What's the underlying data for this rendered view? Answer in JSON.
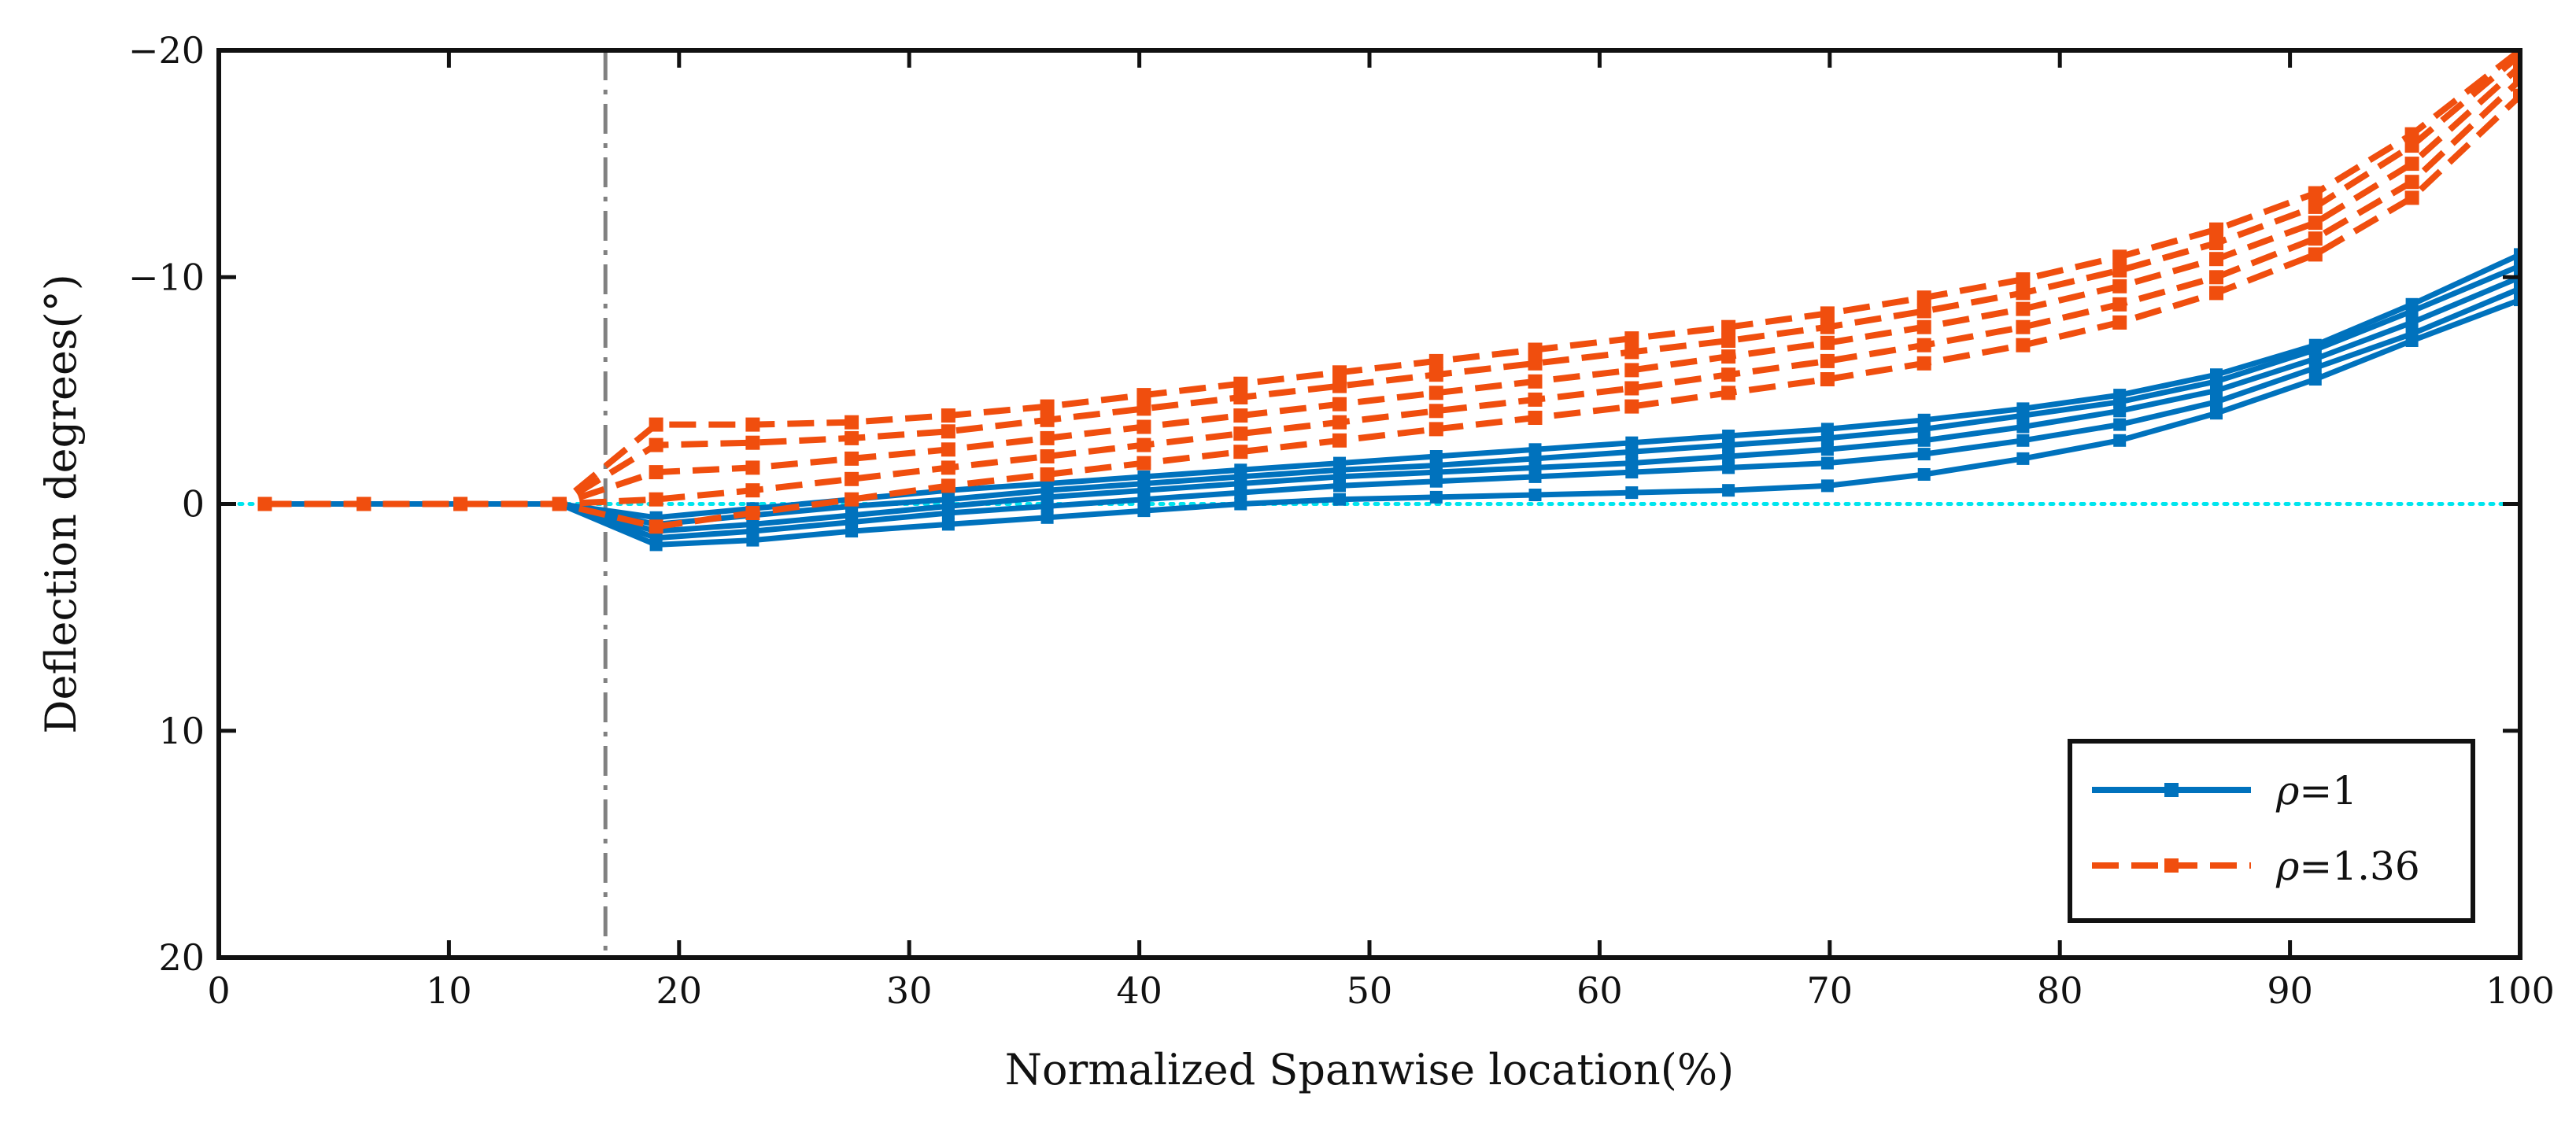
{
  "chart_data": {
    "type": "line",
    "title": "",
    "xlabel": "Normalized Spanwise location(%)",
    "ylabel": "Deflection degrees(°)",
    "xlim": [
      0,
      100
    ],
    "ylim": [
      20,
      -20
    ],
    "y_axis_reversed": true,
    "x_ticks": [
      0,
      10,
      20,
      30,
      40,
      50,
      60,
      70,
      80,
      90,
      100
    ],
    "x_tick_labels": [
      "0",
      "10",
      "20",
      "30",
      "40",
      "50",
      "60",
      "70",
      "80",
      "90",
      "100"
    ],
    "y_ticks": [
      -20,
      -10,
      0,
      10,
      20
    ],
    "y_tick_labels": [
      "−20",
      "−10",
      "0",
      "10",
      "20"
    ],
    "reference_lines": [
      {
        "name": "zero-line",
        "orientation": "horizontal",
        "value": 0,
        "color": "#00E5EE",
        "style": "dotted"
      },
      {
        "name": "root-boundary",
        "orientation": "vertical",
        "value": 16.8,
        "color": "#808080",
        "style": "dash-dot"
      }
    ],
    "legend": {
      "position": "bottom-right",
      "entries": [
        {
          "rho_symbol": "ρ",
          "text": "=1",
          "series": "rho-1"
        },
        {
          "rho_symbol": "ρ",
          "text": "=1.36",
          "series": "rho-1.36"
        }
      ]
    },
    "series_styles": {
      "rho-1": {
        "color": "#0072BD",
        "dash": "solid"
      },
      "rho-1.36": {
        "color": "#F04E0E",
        "dash": "dashed"
      }
    },
    "series": [
      {
        "name": "ρ=1 run 1",
        "group": "rho-1",
        "x": [
          2,
          6.3,
          10.5,
          14.8,
          19,
          23.2,
          27.5,
          31.7,
          36,
          40.2,
          44.4,
          48.7,
          52.9,
          57.2,
          61.4,
          65.6,
          69.9,
          74.1,
          78.4,
          82.6,
          86.8,
          91.1,
          95.3,
          100
        ],
        "y": [
          0,
          0,
          0,
          0,
          1.8,
          1.6,
          1.2,
          0.9,
          0.6,
          0.3,
          0,
          -0.2,
          -0.3,
          -0.4,
          -0.5,
          -0.6,
          -0.8,
          -1.3,
          -2.0,
          -2.8,
          -4.0,
          -5.5,
          -7.2,
          -9.0
        ]
      },
      {
        "name": "ρ=1 run 2",
        "group": "rho-1",
        "x": [
          2,
          6.3,
          10.5,
          14.8,
          19,
          23.2,
          27.5,
          31.7,
          36,
          40.2,
          44.4,
          48.7,
          52.9,
          57.2,
          61.4,
          65.6,
          69.9,
          74.1,
          78.4,
          82.6,
          86.8,
          91.1,
          95.3,
          100
        ],
        "y": [
          0,
          0,
          0,
          0,
          1.5,
          1.2,
          0.8,
          0.4,
          0.1,
          -0.2,
          -0.5,
          -0.8,
          -1.0,
          -1.2,
          -1.4,
          -1.6,
          -1.8,
          -2.2,
          -2.8,
          -3.5,
          -4.5,
          -6.0,
          -7.5,
          -9.5
        ]
      },
      {
        "name": "ρ=1 run 3",
        "group": "rho-1",
        "x": [
          2,
          6.3,
          10.5,
          14.8,
          19,
          23.2,
          27.5,
          31.7,
          36,
          40.2,
          44.4,
          48.7,
          52.9,
          57.2,
          61.4,
          65.6,
          69.9,
          74.1,
          78.4,
          82.6,
          86.8,
          91.1,
          95.3,
          100
        ],
        "y": [
          0,
          0,
          0,
          0,
          1.2,
          0.9,
          0.5,
          0.1,
          -0.3,
          -0.6,
          -0.9,
          -1.2,
          -1.4,
          -1.6,
          -1.8,
          -2.1,
          -2.4,
          -2.8,
          -3.4,
          -4.1,
          -5.0,
          -6.4,
          -8.0,
          -10.0
        ]
      },
      {
        "name": "ρ=1 run 4",
        "group": "rho-1",
        "x": [
          2,
          6.3,
          10.5,
          14.8,
          19,
          23.2,
          27.5,
          31.7,
          36,
          40.2,
          44.4,
          48.7,
          52.9,
          57.2,
          61.4,
          65.6,
          69.9,
          74.1,
          78.4,
          82.6,
          86.8,
          91.1,
          95.3,
          100
        ],
        "y": [
          0,
          0,
          0,
          0,
          0.9,
          0.5,
          0.1,
          -0.2,
          -0.6,
          -0.9,
          -1.2,
          -1.5,
          -1.7,
          -2.0,
          -2.3,
          -2.6,
          -2.9,
          -3.3,
          -3.9,
          -4.5,
          -5.4,
          -6.8,
          -8.5,
          -10.5
        ]
      },
      {
        "name": "ρ=1 run 5",
        "group": "rho-1",
        "x": [
          2,
          6.3,
          10.5,
          14.8,
          19,
          23.2,
          27.5,
          31.7,
          36,
          40.2,
          44.4,
          48.7,
          52.9,
          57.2,
          61.4,
          65.6,
          69.9,
          74.1,
          78.4,
          82.6,
          86.8,
          91.1,
          95.3,
          100
        ],
        "y": [
          0,
          0,
          0,
          0,
          0.6,
          0.2,
          -0.2,
          -0.6,
          -0.9,
          -1.2,
          -1.5,
          -1.8,
          -2.1,
          -2.4,
          -2.7,
          -3.0,
          -3.3,
          -3.7,
          -4.2,
          -4.8,
          -5.7,
          -7.0,
          -8.8,
          -11.0
        ]
      },
      {
        "name": "ρ=1.36 run 1",
        "group": "rho-1.36",
        "x": [
          2,
          6.3,
          10.5,
          14.8,
          19,
          23.2,
          27.5,
          31.7,
          36,
          40.2,
          44.4,
          48.7,
          52.9,
          57.2,
          61.4,
          65.6,
          69.9,
          74.1,
          78.4,
          82.6,
          86.8,
          91.1,
          95.3,
          100
        ],
        "y": [
          0,
          0,
          0,
          0,
          1.0,
          0.4,
          -0.2,
          -0.8,
          -1.3,
          -1.8,
          -2.3,
          -2.8,
          -3.3,
          -3.8,
          -4.3,
          -4.9,
          -5.5,
          -6.2,
          -7.0,
          -8.0,
          -9.3,
          -11.0,
          -13.5,
          -18.0
        ]
      },
      {
        "name": "ρ=1.36 run 2",
        "group": "rho-1.36",
        "x": [
          2,
          6.3,
          10.5,
          14.8,
          19,
          23.2,
          27.5,
          31.7,
          36,
          40.2,
          44.4,
          48.7,
          52.9,
          57.2,
          61.4,
          65.6,
          69.9,
          74.1,
          78.4,
          82.6,
          86.8,
          91.1,
          95.3,
          100
        ],
        "y": [
          0,
          0,
          0,
          0,
          -0.2,
          -0.6,
          -1.1,
          -1.6,
          -2.1,
          -2.6,
          -3.1,
          -3.6,
          -4.1,
          -4.6,
          -5.1,
          -5.7,
          -6.3,
          -7.0,
          -7.8,
          -8.8,
          -10.0,
          -11.7,
          -14.2,
          -18.7
        ]
      },
      {
        "name": "ρ=1.36 run 3",
        "group": "rho-1.36",
        "x": [
          2,
          6.3,
          10.5,
          14.8,
          19,
          23.2,
          27.5,
          31.7,
          36,
          40.2,
          44.4,
          48.7,
          52.9,
          57.2,
          61.4,
          65.6,
          69.9,
          74.1,
          78.4,
          82.6,
          86.8,
          91.1,
          95.3,
          100
        ],
        "y": [
          0,
          0,
          0,
          0,
          -1.4,
          -1.6,
          -2.0,
          -2.4,
          -2.9,
          -3.4,
          -3.9,
          -4.4,
          -4.9,
          -5.4,
          -5.9,
          -6.5,
          -7.1,
          -7.8,
          -8.6,
          -9.6,
          -10.8,
          -12.4,
          -15.0,
          -19.3
        ]
      },
      {
        "name": "ρ=1.36 run 4",
        "group": "rho-1.36",
        "x": [
          2,
          6.3,
          10.5,
          14.8,
          19,
          23.2,
          27.5,
          31.7,
          36,
          40.2,
          44.4,
          48.7,
          52.9,
          57.2,
          61.4,
          65.6,
          69.9,
          74.1,
          78.4,
          82.6,
          86.8,
          91.1,
          95.3,
          100
        ],
        "y": [
          0,
          0,
          0,
          0,
          -2.6,
          -2.7,
          -2.9,
          -3.2,
          -3.7,
          -4.2,
          -4.7,
          -5.2,
          -5.7,
          -6.2,
          -6.7,
          -7.2,
          -7.8,
          -8.5,
          -9.3,
          -10.3,
          -11.5,
          -13.1,
          -15.8,
          -19.8
        ]
      },
      {
        "name": "ρ=1.36 run 5",
        "group": "rho-1.36",
        "x": [
          2,
          6.3,
          10.5,
          14.8,
          19,
          23.2,
          27.5,
          31.7,
          36,
          40.2,
          44.4,
          48.7,
          52.9,
          57.2,
          61.4,
          65.6,
          69.9,
          74.1,
          78.4,
          82.6,
          86.8,
          91.1,
          95.3,
          100
        ],
        "y": [
          0,
          0,
          0,
          0,
          -3.5,
          -3.5,
          -3.6,
          -3.9,
          -4.3,
          -4.8,
          -5.3,
          -5.8,
          -6.3,
          -6.8,
          -7.3,
          -7.8,
          -8.4,
          -9.1,
          -9.9,
          -10.9,
          -12.1,
          -13.7,
          -16.3,
          -20.0
        ]
      }
    ]
  }
}
